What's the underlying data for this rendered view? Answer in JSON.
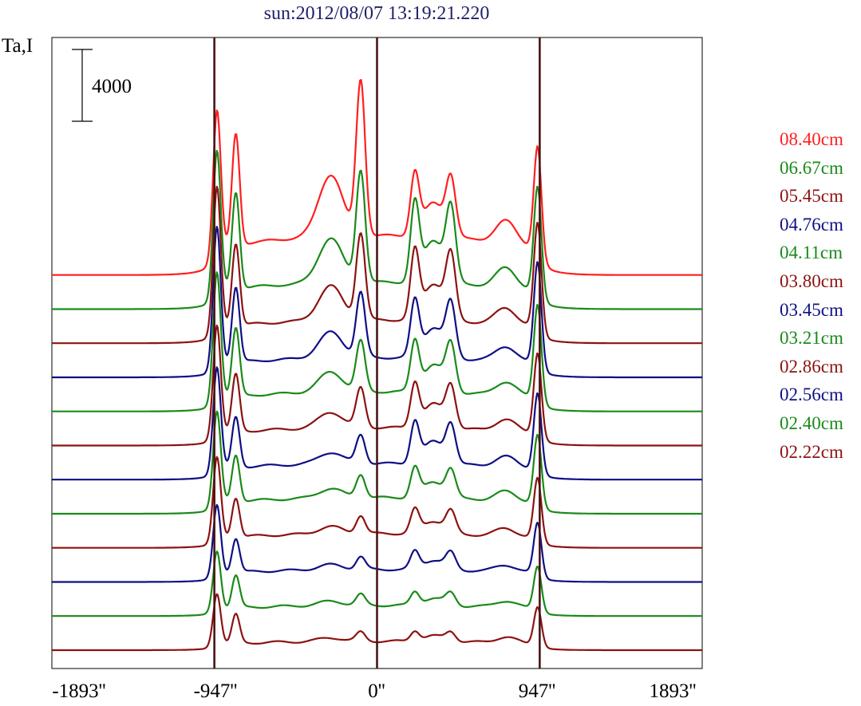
{
  "title": "sun:2012/08/07 13:19:21.220",
  "y_axis_label": "Ta,I",
  "scale_bar_label": "4000",
  "x_ticks": [
    "-1893''",
    "-947''",
    "0''",
    "947''",
    "1893''"
  ],
  "colors": {
    "red": "#ff1f1f",
    "green": "#1a8a1a",
    "darkred": "#8c1212",
    "navy": "#0f0f85",
    "marker": "#4a1515",
    "frame": "#000000"
  },
  "chart_data": {
    "type": "line",
    "title": "sun:2012/08/07 13:19:21.220",
    "ylabel": "Ta,I",
    "xlabel": "",
    "x_unit": "arcsec",
    "xlim": [
      -1893,
      1893
    ],
    "x_tick_values": [
      -1893,
      -947,
      0,
      947,
      1893
    ],
    "vertical_markers": [
      -947,
      0,
      947
    ],
    "scale_bar": 4000,
    "vertical_offset_between_traces": 1900,
    "grid": false,
    "legend_position": "right",
    "series": [
      {
        "name": "08.40cm",
        "color": "red",
        "peak_limb": 8000,
        "near_limb": 6200,
        "center": 8600,
        "right_bump": 4200,
        "base": 2200
      },
      {
        "name": "06.67cm",
        "color": "green",
        "peak_limb": 8000,
        "near_limb": 5400,
        "center": 6200,
        "right_bump": 5300,
        "base": 1500
      },
      {
        "name": "05.45cm",
        "color": "darkred",
        "peak_limb": 8000,
        "near_limb": 4600,
        "center": 4800,
        "right_bump": 4600,
        "base": 1300
      },
      {
        "name": "04.76cm",
        "color": "navy",
        "peak_limb": 7800,
        "near_limb": 4200,
        "center": 3600,
        "right_bump": 3800,
        "base": 1100
      },
      {
        "name": "04.11cm",
        "color": "green",
        "peak_limb": 7200,
        "near_limb": 3800,
        "center": 2800,
        "right_bump": 3400,
        "base": 1100
      },
      {
        "name": "03.80cm",
        "color": "darkred",
        "peak_limb": 6200,
        "near_limb": 3200,
        "center": 2200,
        "right_bump": 3000,
        "base": 1000
      },
      {
        "name": "03.45cm",
        "color": "navy",
        "peak_limb": 5800,
        "near_limb": 2800,
        "center": 1600,
        "right_bump": 2800,
        "base": 900
      },
      {
        "name": "03.21cm",
        "color": "green",
        "peak_limb": 5200,
        "near_limb": 2600,
        "center": 1300,
        "right_bump": 2000,
        "base": 900
      },
      {
        "name": "02.86cm",
        "color": "darkred",
        "peak_limb": 4600,
        "near_limb": 2200,
        "center": 1000,
        "right_bump": 1600,
        "base": 800
      },
      {
        "name": "02.56cm",
        "color": "navy",
        "peak_limb": 3900,
        "near_limb": 1900,
        "center": 700,
        "right_bump": 1200,
        "base": 700
      },
      {
        "name": "02.40cm",
        "color": "green",
        "peak_limb": 3300,
        "near_limb": 1800,
        "center": 600,
        "right_bump": 900,
        "base": 600
      },
      {
        "name": "02.22cm",
        "color": "darkred",
        "peak_limb": 2900,
        "near_limb": 1600,
        "center": 500,
        "right_bump": 700,
        "base": 500
      }
    ]
  }
}
